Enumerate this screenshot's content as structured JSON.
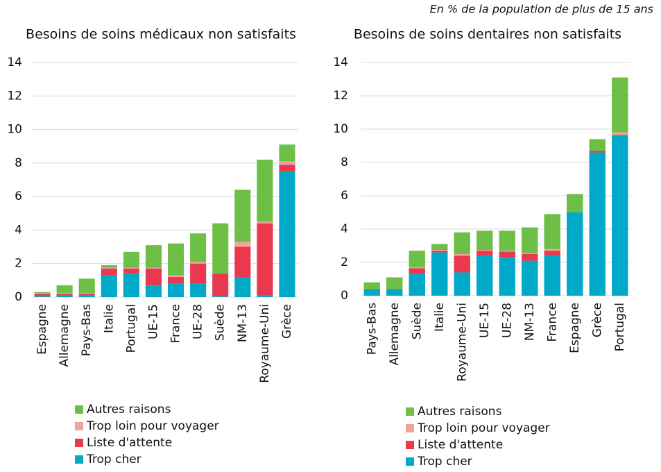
{
  "note": "En % de la population de plus de 15 ans",
  "chart_data": [
    {
      "type": "bar",
      "stacked": true,
      "title": "Besoins de soins médicaux non satisfaits",
      "categories": [
        "Espagne",
        "Allemagne",
        "Pays-Bas",
        "Italie",
        "Portugal",
        "UE-15",
        "France",
        "UE-28",
        "Suède",
        "NM-13",
        "Royaume-Uni",
        "Grèce"
      ],
      "series": [
        {
          "name": "Trop cher",
          "color": "#00a9c8",
          "values": [
            0.05,
            0.1,
            0.1,
            1.3,
            1.4,
            0.7,
            0.8,
            0.8,
            0.05,
            1.2,
            0.1,
            7.5
          ]
        },
        {
          "name": "Liste d'attente",
          "color": "#e8394f",
          "values": [
            0.15,
            0.1,
            0.1,
            0.4,
            0.3,
            1.0,
            0.4,
            1.2,
            1.35,
            1.8,
            4.3,
            0.4
          ]
        },
        {
          "name": "Trop loin pour voyager",
          "color": "#f2a19c",
          "values": [
            0.05,
            0.05,
            0.05,
            0.05,
            0.05,
            0.05,
            0.1,
            0.1,
            0,
            0.3,
            0.1,
            0.2
          ]
        },
        {
          "name": "Autres raisons",
          "color": "#6dbf45",
          "values": [
            0.05,
            0.45,
            0.85,
            0.15,
            0.95,
            1.35,
            1.9,
            1.7,
            3.0,
            3.1,
            3.7,
            1.0
          ]
        }
      ],
      "ylim": [
        0,
        14
      ],
      "yticks": [
        0,
        2,
        4,
        6,
        8,
        10,
        12,
        14
      ],
      "grid": true
    },
    {
      "type": "bar",
      "stacked": true,
      "title": "Besoins de soins dentaires non satisfaits",
      "categories": [
        "Pays-Bas",
        "Allemagne",
        "Suède",
        "Italie",
        "Royaume-Uni",
        "UE-15",
        "UE-28",
        "NM-13",
        "France",
        "Espagne",
        "Grèce",
        "Portugal"
      ],
      "series": [
        {
          "name": "Trop cher",
          "color": "#00a9c8",
          "values": [
            0.35,
            0.35,
            1.3,
            2.6,
            1.4,
            2.4,
            2.3,
            2.1,
            2.4,
            5.0,
            8.6,
            9.6
          ]
        },
        {
          "name": "Liste d'attente",
          "color": "#e8394f",
          "values": [
            0.05,
            0.05,
            0.35,
            0.1,
            1.0,
            0.3,
            0.35,
            0.4,
            0.3,
            0,
            0.1,
            0.05
          ]
        },
        {
          "name": "Trop loin pour voyager",
          "color": "#f2a19c",
          "values": [
            0,
            0,
            0.05,
            0.05,
            0.1,
            0.05,
            0.05,
            0.05,
            0.1,
            0,
            0,
            0.15
          ]
        },
        {
          "name": "Autres raisons",
          "color": "#6dbf45",
          "values": [
            0.4,
            0.7,
            1.0,
            0.35,
            1.3,
            1.15,
            1.2,
            1.55,
            2.1,
            1.1,
            0.7,
            3.3
          ]
        }
      ],
      "ylim": [
        0,
        14
      ],
      "yticks": [
        0,
        2,
        4,
        6,
        8,
        10,
        12,
        14
      ],
      "grid": true
    }
  ]
}
